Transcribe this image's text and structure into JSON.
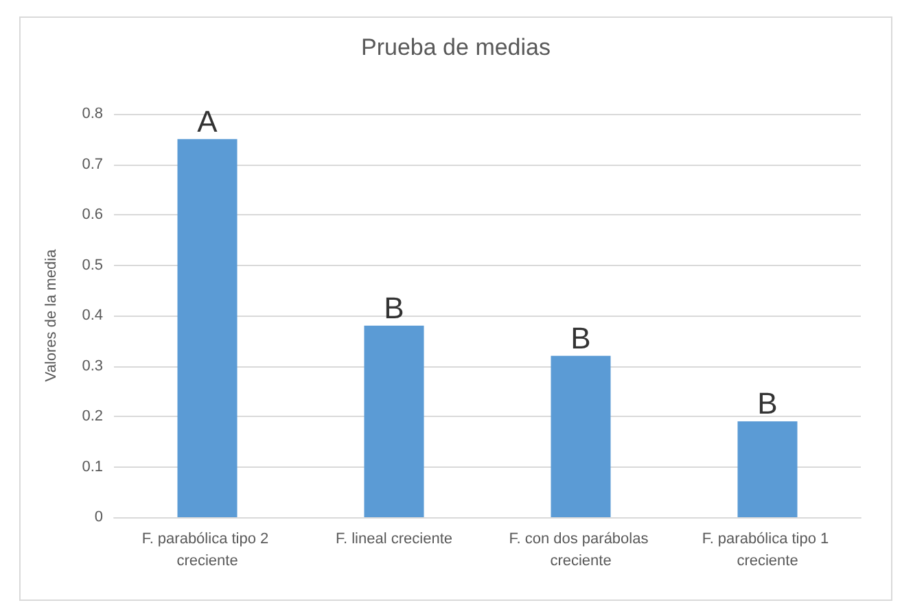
{
  "chart_data": {
    "type": "bar",
    "title": "Prueba de medias",
    "ylabel": "Valores de la media",
    "categories": [
      "F. parabólica tipo 2 creciente",
      "F. lineal creciente",
      "F. con dos parábolas creciente",
      "F. parabólica tipo 1 creciente"
    ],
    "values": [
      0.75,
      0.38,
      0.32,
      0.19
    ],
    "color": "#5b9bd5",
    "ylim": [
      0,
      0.8
    ],
    "yticks": [
      0,
      0.1,
      0.2,
      0.3,
      0.4,
      0.5,
      0.6,
      0.7,
      0.8
    ],
    "grid": "y",
    "annotations": [
      {
        "text": "A",
        "x": "F. parabólica tipo 2 creciente",
        "y": 0.75
      },
      {
        "text": "B",
        "x": "F. lineal creciente",
        "y": 0.38
      },
      {
        "text": "B",
        "x": "F. con dos parábolas creciente",
        "y": 0.32
      },
      {
        "text": "B",
        "x": "F. parabólica tipo 1 creciente",
        "y": 0.19
      }
    ]
  }
}
